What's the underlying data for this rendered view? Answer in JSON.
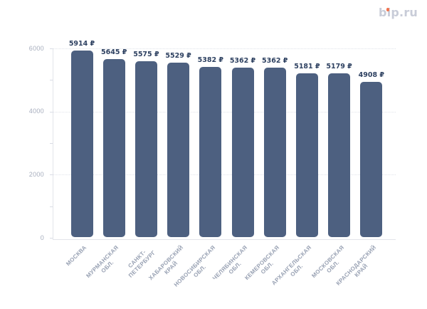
{
  "logo": {
    "text": "bip.ru",
    "color": "#c8ccd8",
    "dot_color": "#f2734d"
  },
  "chart_data": {
    "type": "bar",
    "title": "",
    "xlabel": "",
    "ylabel": "",
    "categories": [
      "МОСКВА",
      "МУРМАНСКАЯ ОБЛ.",
      "САНКТ-ПЕТЕРБУРГ",
      "ХАБАРОВСКИЙ КРАЙ",
      "НОВОСИБИРСКАЯ ОБЛ.",
      "ЧЕЛЯБИНСКАЯ ОБЛ.",
      "КЕМЕРОВСКАЯ ОБЛ.",
      "АРХАНГЕЛЬСКАЯ ОБЛ.",
      "МОСКОВСКАЯ ОБЛ.",
      "КРАСНОДАРСКИЙ КРАЙ"
    ],
    "category_lines": [
      [
        "МОСКВА"
      ],
      [
        "МУРМАНСКАЯ",
        "ОБЛ."
      ],
      [
        "САНКТ-",
        "ПЕТЕРБУРГ"
      ],
      [
        "ХАБАРОВСКИЙ",
        "КРАЙ"
      ],
      [
        "НОВОСИБИРСКАЯ",
        "ОБЛ."
      ],
      [
        "ЧЕЛЯБИНСКАЯ",
        "ОБЛ."
      ],
      [
        "КЕМЕРОВСКАЯ",
        "ОБЛ."
      ],
      [
        "АРХАНГЕЛЬСКАЯ",
        "ОБЛ."
      ],
      [
        "МОСКОВСКАЯ",
        "ОБЛ."
      ],
      [
        "КРАСНОДАРСКИЙ",
        "КРАЙ"
      ]
    ],
    "values": [
      5914,
      5645,
      5575,
      5529,
      5382,
      5362,
      5362,
      5181,
      5179,
      4908
    ],
    "value_suffix": " ₽",
    "ylim": [
      0,
      6000
    ],
    "yticks": [
      0,
      2000,
      4000,
      6000
    ],
    "minor_tick_step": 1000,
    "grid": "horizontal-dotted",
    "legend": "none",
    "bar_color": "#4d6080",
    "value_label_color": "#2e4161",
    "axis_label_color": "#a6adbd",
    "category_label_color": "#98a1b3",
    "grid_color": "#e0e3ea",
    "axis_line_color": "#e2e4ea",
    "background": "#ffffff"
  }
}
